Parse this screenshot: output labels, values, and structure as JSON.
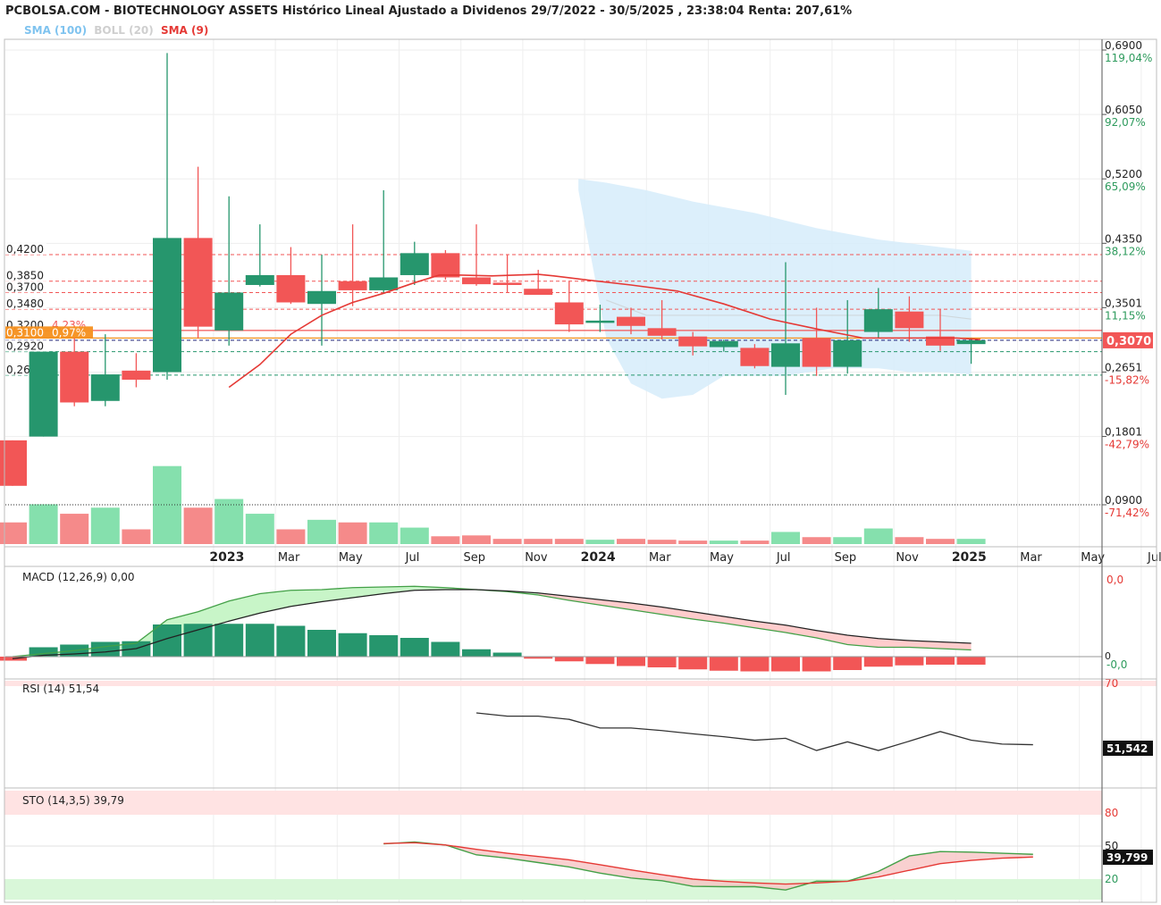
{
  "header": {
    "title": "PCBOLSA.COM - BIOTECHNOLOGY ASSETS Histórico Lineal Ajustado a Dividenos 29/7/2022 - 30/5/2025 , 23:38:04 Renta: 207,61%",
    "legend": {
      "sma100": "SMA (100)",
      "boll20": "BOLL (20)",
      "sma9": "SMA (9)",
      "sma100_color": "#7fc3ef",
      "boll20_color": "#cfcfcf",
      "sma9_color": "#e53935"
    }
  },
  "colors": {
    "up": "#26966d",
    "down": "#f25656",
    "vol_up": "#85e0ad",
    "vol_down": "#f58a8a",
    "boll_fill": "#d6ecfa",
    "grid": "#eeeeee"
  },
  "chart_data": {
    "type": "candlestick",
    "x_labels": [
      {
        "t": 7.0,
        "label": "2023",
        "bold": true
      },
      {
        "t": 9.0,
        "label": "Mar"
      },
      {
        "t": 11.0,
        "label": "May"
      },
      {
        "t": 13.0,
        "label": "Jul"
      },
      {
        "t": 15.0,
        "label": "Sep"
      },
      {
        "t": 17.0,
        "label": "Nov"
      },
      {
        "t": 19.0,
        "label": "2024",
        "bold": true
      },
      {
        "t": 21.0,
        "label": "Mar"
      },
      {
        "t": 23.0,
        "label": "May"
      },
      {
        "t": 25.0,
        "label": "Jul"
      },
      {
        "t": 27.0,
        "label": "Sep"
      },
      {
        "t": 29.0,
        "label": "Nov"
      },
      {
        "t": 31.0,
        "label": "2025",
        "bold": true
      },
      {
        "t": 33.0,
        "label": "Mar"
      },
      {
        "t": 35.0,
        "label": "May"
      },
      {
        "t": 37.0,
        "label": "Jul"
      }
    ],
    "price": {
      "ylim": [
        0.09,
        0.69
      ],
      "right_axis": [
        {
          "price": 0.69,
          "label": "0,6900",
          "pct": "119,04%",
          "pct_color": "#2e9b5d"
        },
        {
          "price": 0.605,
          "label": "0,6050",
          "pct": "92,07%",
          "pct_color": "#2e9b5d"
        },
        {
          "price": 0.52,
          "label": "0,5200",
          "pct": "65,09%",
          "pct_color": "#2e9b5d"
        },
        {
          "price": 0.435,
          "label": "0,4350",
          "pct": "38,12%",
          "pct_color": "#2e9b5d"
        },
        {
          "price": 0.3501,
          "label": "0,3501",
          "pct": "11,15%",
          "pct_color": "#2e9b5d"
        },
        {
          "price": 0.2651,
          "label": "0,2651",
          "pct": "-15,82%",
          "pct_color": "#e53935"
        },
        {
          "price": 0.1801,
          "label": "0,1801",
          "pct": "-42,79%",
          "pct_color": "#e53935"
        },
        {
          "price": 0.09,
          "label": "0,0900",
          "pct": "-71,42%",
          "pct_color": "#e53935"
        }
      ],
      "current": {
        "price": 0.307,
        "label": "0,3070",
        "color": "#f25656"
      },
      "levels": [
        {
          "price": 0.42,
          "label": "0,4200",
          "color": "#f25656",
          "style": "dashed"
        },
        {
          "price": 0.385,
          "label": "0,3850",
          "color": "#f25656",
          "style": "dashed"
        },
        {
          "price": 0.37,
          "label": "0,3700",
          "color": "#f25656",
          "style": "dashed"
        },
        {
          "price": 0.348,
          "label": "0,3480",
          "color": "#f25656",
          "style": "dashed"
        },
        {
          "price": 0.32,
          "label": "0,3200",
          "tag": "4,23%",
          "color": "#f25656",
          "style": "solid"
        },
        {
          "price": 0.31,
          "label": "0,3100",
          "tag": "0,97%",
          "color": "#f5901e",
          "style": "solid",
          "highlight": true
        },
        {
          "price": 0.307,
          "label": "",
          "color": "#1a237e",
          "style": "dashed"
        },
        {
          "price": 0.292,
          "label": "0,2920",
          "color": "#26966d",
          "style": "dashed"
        },
        {
          "price": 0.261,
          "label": "0,2610",
          "color": "#26966d",
          "style": "dashed"
        }
      ],
      "candles": [
        {
          "t": 0,
          "o": 0.175,
          "h": 0.175,
          "l": 0.115,
          "c": 0.115
        },
        {
          "t": 1,
          "o": 0.18,
          "h": 0.292,
          "l": 0.18,
          "c": 0.292
        },
        {
          "t": 2,
          "o": 0.292,
          "h": 0.31,
          "l": 0.22,
          "c": 0.225
        },
        {
          "t": 3,
          "o": 0.227,
          "h": 0.315,
          "l": 0.22,
          "c": 0.262
        },
        {
          "t": 4,
          "o": 0.267,
          "h": 0.29,
          "l": 0.245,
          "c": 0.255
        },
        {
          "t": 5,
          "o": 0.265,
          "h": 0.686,
          "l": 0.255,
          "c": 0.442
        },
        {
          "t": 6,
          "o": 0.442,
          "h": 0.536,
          "l": 0.31,
          "c": 0.325
        },
        {
          "t": 7,
          "o": 0.32,
          "h": 0.497,
          "l": 0.3,
          "c": 0.37
        },
        {
          "t": 8,
          "o": 0.38,
          "h": 0.46,
          "l": 0.378,
          "c": 0.393
        },
        {
          "t": 9,
          "o": 0.393,
          "h": 0.43,
          "l": 0.355,
          "c": 0.357
        },
        {
          "t": 10,
          "o": 0.355,
          "h": 0.42,
          "l": 0.3,
          "c": 0.372
        },
        {
          "t": 11,
          "o": 0.385,
          "h": 0.46,
          "l": 0.352,
          "c": 0.373
        },
        {
          "t": 12,
          "o": 0.373,
          "h": 0.505,
          "l": 0.37,
          "c": 0.39
        },
        {
          "t": 13,
          "o": 0.393,
          "h": 0.437,
          "l": 0.38,
          "c": 0.422
        },
        {
          "t": 14,
          "o": 0.422,
          "h": 0.426,
          "l": 0.387,
          "c": 0.39
        },
        {
          "t": 15,
          "o": 0.39,
          "h": 0.46,
          "l": 0.379,
          "c": 0.381
        },
        {
          "t": 16,
          "o": 0.383,
          "h": 0.42,
          "l": 0.37,
          "c": 0.38
        },
        {
          "t": 17,
          "o": 0.375,
          "h": 0.4,
          "l": 0.368,
          "c": 0.367
        },
        {
          "t": 18,
          "o": 0.357,
          "h": 0.385,
          "l": 0.318,
          "c": 0.328
        },
        {
          "t": 19,
          "o": 0.33,
          "h": 0.354,
          "l": 0.318,
          "c": 0.333
        },
        {
          "t": 20,
          "o": 0.338,
          "h": 0.35,
          "l": 0.315,
          "c": 0.326
        },
        {
          "t": 21,
          "o": 0.323,
          "h": 0.36,
          "l": 0.308,
          "c": 0.313
        },
        {
          "t": 22,
          "o": 0.312,
          "h": 0.318,
          "l": 0.287,
          "c": 0.299
        },
        {
          "t": 23,
          "o": 0.298,
          "h": 0.308,
          "l": 0.292,
          "c": 0.306
        },
        {
          "t": 24,
          "o": 0.297,
          "h": 0.302,
          "l": 0.27,
          "c": 0.273
        },
        {
          "t": 25,
          "o": 0.272,
          "h": 0.41,
          "l": 0.235,
          "c": 0.303
        },
        {
          "t": 26,
          "o": 0.31,
          "h": 0.35,
          "l": 0.26,
          "c": 0.272
        },
        {
          "t": 27,
          "o": 0.272,
          "h": 0.36,
          "l": 0.263,
          "c": 0.307
        },
        {
          "t": 28,
          "o": 0.318,
          "h": 0.376,
          "l": 0.31,
          "c": 0.348
        },
        {
          "t": 29,
          "o": 0.345,
          "h": 0.365,
          "l": 0.305,
          "c": 0.323
        },
        {
          "t": 30,
          "o": 0.312,
          "h": 0.348,
          "l": 0.293,
          "c": 0.3
        },
        {
          "t": 31,
          "o": 0.302,
          "h": 0.31,
          "l": 0.276,
          "c": 0.307
        }
      ],
      "volume": [
        0.25,
        0.46,
        0.35,
        0.42,
        0.17,
        0.9,
        0.42,
        0.52,
        0.35,
        0.17,
        0.28,
        0.25,
        0.25,
        0.19,
        0.09,
        0.1,
        0.06,
        0.06,
        0.06,
        0.05,
        0.06,
        0.05,
        0.04,
        0.04,
        0.04,
        0.14,
        0.08,
        0.08,
        0.18,
        0.08,
        0.06,
        0.06
      ],
      "sma9": [
        [
          7.0,
          0.245
        ],
        [
          8.0,
          0.275
        ],
        [
          9.0,
          0.315
        ],
        [
          10.0,
          0.34
        ],
        [
          11.0,
          0.357
        ],
        [
          12.0,
          0.369
        ],
        [
          13.0,
          0.383
        ],
        [
          13.8,
          0.393
        ],
        [
          14.5,
          0.393
        ],
        [
          15.5,
          0.392
        ],
        [
          17.0,
          0.394
        ],
        [
          17.5,
          0.392
        ],
        [
          18.5,
          0.387
        ],
        [
          20.0,
          0.38
        ],
        [
          21.5,
          0.372
        ],
        [
          23.0,
          0.355
        ],
        [
          24.5,
          0.335
        ],
        [
          26.0,
          0.322
        ],
        [
          27.5,
          0.31
        ],
        [
          29.0,
          0.31
        ],
        [
          30.5,
          0.31
        ],
        [
          31.3,
          0.308
        ]
      ],
      "boll_upper": [
        [
          18.3,
          0.52
        ],
        [
          19.2,
          0.515
        ],
        [
          20.5,
          0.505
        ],
        [
          22.0,
          0.49
        ],
        [
          24.0,
          0.475
        ],
        [
          26.0,
          0.455
        ],
        [
          28.0,
          0.44
        ],
        [
          30.0,
          0.43
        ],
        [
          31.0,
          0.425
        ]
      ],
      "boll_lower": [
        [
          18.3,
          0.505
        ],
        [
          19.2,
          0.31
        ],
        [
          20.0,
          0.25
        ],
        [
          21.0,
          0.23
        ],
        [
          22.0,
          0.235
        ],
        [
          23.0,
          0.26
        ],
        [
          24.0,
          0.26
        ],
        [
          25.0,
          0.26
        ],
        [
          26.5,
          0.27
        ],
        [
          28.0,
          0.27
        ],
        [
          29.0,
          0.265
        ],
        [
          30.0,
          0.265
        ],
        [
          31.0,
          0.262
        ]
      ],
      "boll_mid": [
        [
          19.2,
          0.36
        ],
        [
          20.5,
          0.34
        ],
        [
          22.0,
          0.34
        ],
        [
          24.0,
          0.34
        ],
        [
          26.0,
          0.34
        ],
        [
          28.0,
          0.34
        ],
        [
          30.0,
          0.34
        ],
        [
          31.0,
          0.335
        ]
      ]
    },
    "macd": {
      "label": "MACD (12,26,9)",
      "value": "0,00",
      "right_axis": [
        {
          "v": 1.0,
          "label": "0,0",
          "color": "#e53935"
        },
        {
          "v": 0.0,
          "label": "0,0",
          "color": "#2e9b5d"
        }
      ],
      "ylim": [
        -0.25,
        1.04
      ],
      "macd_line": [
        [
          0,
          0.0
        ],
        [
          2,
          0.09
        ],
        [
          3,
          0.15
        ],
        [
          4,
          0.2
        ],
        [
          5,
          0.55
        ],
        [
          6,
          0.67
        ],
        [
          7,
          0.83
        ],
        [
          8,
          0.94
        ],
        [
          9,
          0.99
        ],
        [
          10,
          1.0
        ],
        [
          11,
          1.03
        ],
        [
          12,
          1.04
        ],
        [
          13,
          1.05
        ],
        [
          14,
          1.03
        ],
        [
          15,
          1.0
        ],
        [
          16,
          0.97
        ],
        [
          17,
          0.92
        ],
        [
          18,
          0.84
        ],
        [
          19,
          0.77
        ],
        [
          20,
          0.7
        ],
        [
          21,
          0.63
        ],
        [
          22,
          0.56
        ],
        [
          23,
          0.5
        ],
        [
          24,
          0.43
        ],
        [
          25,
          0.36
        ],
        [
          26,
          0.28
        ],
        [
          27,
          0.18
        ],
        [
          28,
          0.14
        ],
        [
          29,
          0.14
        ],
        [
          30,
          0.12
        ],
        [
          31,
          0.1
        ]
      ],
      "signal_line": [
        [
          0,
          -0.03
        ],
        [
          1,
          0.02
        ],
        [
          2,
          0.04
        ],
        [
          3,
          0.07
        ],
        [
          4,
          0.12
        ],
        [
          5,
          0.27
        ],
        [
          6,
          0.4
        ],
        [
          7,
          0.53
        ],
        [
          8,
          0.65
        ],
        [
          9,
          0.75
        ],
        [
          10,
          0.82
        ],
        [
          11,
          0.88
        ],
        [
          12,
          0.94
        ],
        [
          13,
          0.99
        ],
        [
          14,
          1.0
        ],
        [
          15,
          1.0
        ],
        [
          16,
          0.98
        ],
        [
          17,
          0.95
        ],
        [
          18,
          0.9
        ],
        [
          19,
          0.85
        ],
        [
          20,
          0.8
        ],
        [
          21,
          0.74
        ],
        [
          22,
          0.67
        ],
        [
          23,
          0.6
        ],
        [
          24,
          0.53
        ],
        [
          25,
          0.47
        ],
        [
          26,
          0.39
        ],
        [
          27,
          0.32
        ],
        [
          28,
          0.27
        ],
        [
          29,
          0.24
        ],
        [
          30,
          0.22
        ],
        [
          31,
          0.2
        ]
      ],
      "histogram": [
        -0.06,
        0.14,
        0.18,
        0.22,
        0.23,
        0.48,
        0.49,
        0.49,
        0.49,
        0.46,
        0.4,
        0.35,
        0.32,
        0.28,
        0.22,
        0.11,
        0.06,
        -0.03,
        -0.07,
        -0.11,
        -0.14,
        -0.16,
        -0.19,
        -0.21,
        -0.22,
        -0.22,
        -0.22,
        -0.2,
        -0.15,
        -0.13,
        -0.12,
        -0.12
      ]
    },
    "rsi": {
      "label": "RSI (14)",
      "value": "51,54",
      "current_label": "51,542",
      "axis_label": "70",
      "ylim": [
        30,
        70
      ],
      "line": [
        [
          15,
          64.3
        ],
        [
          16,
          63.3
        ],
        [
          17,
          63.3
        ],
        [
          18,
          62.3
        ],
        [
          19,
          59.6
        ],
        [
          20,
          59.6
        ],
        [
          21,
          58.8
        ],
        [
          22,
          57.8
        ],
        [
          23,
          56.9
        ],
        [
          24,
          55.8
        ],
        [
          25,
          56.4
        ],
        [
          26,
          52.6
        ],
        [
          27,
          55.3
        ],
        [
          28,
          52.6
        ],
        [
          29,
          55.5
        ],
        [
          30,
          58.5
        ],
        [
          31,
          55.8
        ],
        [
          32,
          54.6
        ],
        [
          33,
          54.4
        ]
      ]
    },
    "sto": {
      "label": "STO (14,3,5)",
      "value": "39,79",
      "current_label": "39,799",
      "axis_labels": [
        {
          "v": 80,
          "label": "80"
        },
        {
          "v": 50,
          "label": "50"
        },
        {
          "v": 20,
          "label": "20"
        }
      ],
      "ylim": [
        2,
        100
      ],
      "k_line": [
        [
          12,
          52
        ],
        [
          13,
          53.7
        ],
        [
          14,
          51
        ],
        [
          15,
          42
        ],
        [
          16,
          39
        ],
        [
          17,
          35
        ],
        [
          18,
          31
        ],
        [
          19,
          25.4
        ],
        [
          20,
          21
        ],
        [
          21,
          18.5
        ],
        [
          22,
          13.5
        ],
        [
          23,
          13.1
        ],
        [
          24,
          13.1
        ],
        [
          25,
          10.1
        ],
        [
          26,
          18.1
        ],
        [
          27,
          18
        ],
        [
          28,
          27
        ],
        [
          29,
          41
        ],
        [
          30,
          45
        ],
        [
          31,
          44.5
        ],
        [
          32,
          43.5
        ],
        [
          33,
          42.5
        ]
      ],
      "d_line": [
        [
          12,
          52.3
        ],
        [
          13,
          53
        ],
        [
          14,
          51
        ],
        [
          15,
          47
        ],
        [
          16,
          43.5
        ],
        [
          17,
          40.5
        ],
        [
          18,
          37.5
        ],
        [
          19,
          33
        ],
        [
          20,
          28.4
        ],
        [
          21,
          24
        ],
        [
          22,
          20
        ],
        [
          23,
          18
        ],
        [
          24,
          16.5
        ],
        [
          25,
          15.5
        ],
        [
          26,
          16.5
        ],
        [
          27,
          18
        ],
        [
          28,
          22
        ],
        [
          29,
          28
        ],
        [
          30,
          34
        ],
        [
          31,
          37
        ],
        [
          32,
          39
        ],
        [
          33,
          40
        ]
      ]
    }
  }
}
